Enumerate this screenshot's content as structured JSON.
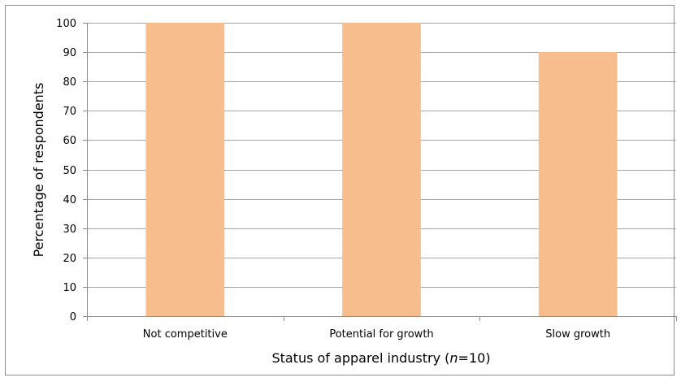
{
  "chart_data": {
    "type": "bar",
    "categories": [
      "Not competitive",
      "Potential for growth",
      "Slow growth"
    ],
    "values": [
      100,
      100,
      90
    ],
    "xlabel": {
      "prefix": "Status of apparel industry (",
      "variable": "n",
      "suffix": "=10)"
    },
    "ylabel": "Percentage of respondents",
    "ylim": [
      0,
      100
    ],
    "yticks": [
      0,
      10,
      20,
      30,
      40,
      50,
      60,
      70,
      80,
      90,
      100
    ],
    "grid": true,
    "legend": "none",
    "bar_color": "#F8BD8C",
    "grid_color": "#A6A6A6",
    "axis_color": "#8C8C8C"
  }
}
